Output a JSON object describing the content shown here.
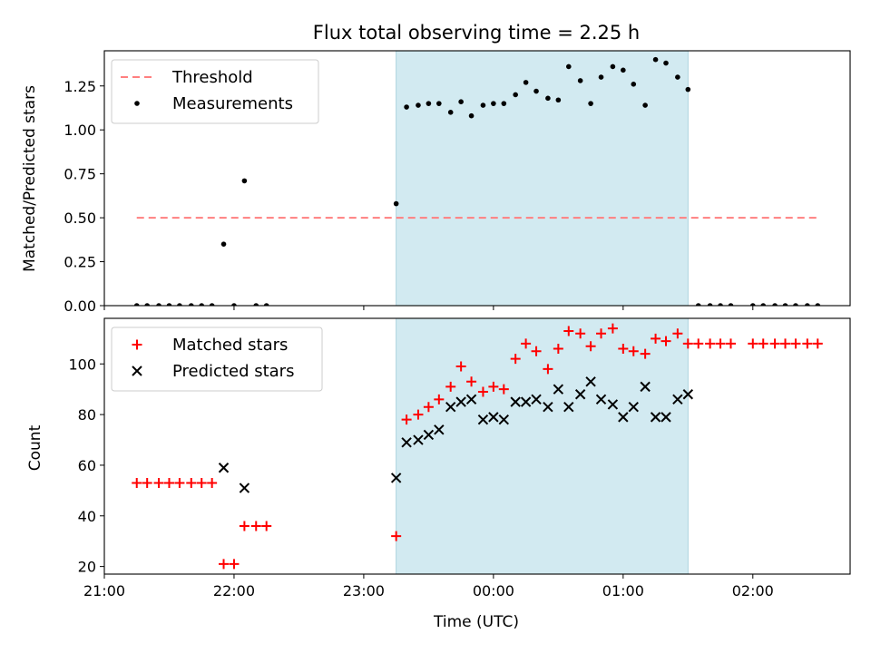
{
  "chart_data": [
    {
      "type": "scatter",
      "title": "Flux total observing time = 2.25 h",
      "xlabel": "",
      "ylabel": "Matched/Predicted stars",
      "ylim": [
        0,
        1.45
      ],
      "yticks": [
        "0.00",
        "0.25",
        "0.50",
        "0.75",
        "1.00",
        "1.25"
      ],
      "ytick_values": [
        0,
        0.25,
        0.5,
        0.75,
        1.0,
        1.25
      ],
      "xlim_hours": [
        21.0,
        2.75
      ],
      "shaded_span_hours": [
        23.25,
        1.5
      ],
      "shaded_color": "#add8e6",
      "legend_position": "upper-left",
      "series": [
        {
          "name": "Threshold",
          "kind": "dashed-line",
          "color": "#ff7f7f",
          "x_hours": [
            21.25,
            2.5
          ],
          "y": [
            0.5,
            0.5
          ]
        },
        {
          "name": "Measurements",
          "kind": "dots",
          "color": "#000000",
          "points": [
            [
              21.25,
              0
            ],
            [
              21.33,
              0
            ],
            [
              21.42,
              0
            ],
            [
              21.5,
              0
            ],
            [
              21.58,
              0
            ],
            [
              21.67,
              0
            ],
            [
              21.75,
              0
            ],
            [
              21.83,
              0
            ],
            [
              21.92,
              0.35
            ],
            [
              22.0,
              0
            ],
            [
              22.08,
              0.71
            ],
            [
              22.17,
              0
            ],
            [
              22.25,
              0
            ],
            [
              23.25,
              0.58
            ],
            [
              23.33,
              1.13
            ],
            [
              23.42,
              1.14
            ],
            [
              23.5,
              1.15
            ],
            [
              23.58,
              1.15
            ],
            [
              23.67,
              1.1
            ],
            [
              23.75,
              1.16
            ],
            [
              23.83,
              1.08
            ],
            [
              23.92,
              1.14
            ],
            [
              0.0,
              1.15
            ],
            [
              0.08,
              1.15
            ],
            [
              0.17,
              1.2
            ],
            [
              0.25,
              1.27
            ],
            [
              0.33,
              1.22
            ],
            [
              0.42,
              1.18
            ],
            [
              0.5,
              1.17
            ],
            [
              0.58,
              1.36
            ],
            [
              0.67,
              1.28
            ],
            [
              0.75,
              1.15
            ],
            [
              0.83,
              1.3
            ],
            [
              0.92,
              1.36
            ],
            [
              1.0,
              1.34
            ],
            [
              1.08,
              1.26
            ],
            [
              1.17,
              1.14
            ],
            [
              1.25,
              1.4
            ],
            [
              1.33,
              1.38
            ],
            [
              1.42,
              1.3
            ],
            [
              1.5,
              1.23
            ],
            [
              1.58,
              0
            ],
            [
              1.67,
              0
            ],
            [
              1.75,
              0
            ],
            [
              1.83,
              0
            ],
            [
              2.0,
              0
            ],
            [
              2.08,
              0
            ],
            [
              2.17,
              0
            ],
            [
              2.25,
              0
            ],
            [
              2.33,
              0
            ],
            [
              2.42,
              0
            ],
            [
              2.5,
              0
            ]
          ]
        }
      ]
    },
    {
      "type": "scatter",
      "title": "",
      "xlabel": "Time (UTC)",
      "ylabel": "Count",
      "ylim": [
        17,
        118
      ],
      "yticks": [
        "20",
        "40",
        "60",
        "80",
        "100"
      ],
      "ytick_values": [
        20,
        40,
        60,
        80,
        100
      ],
      "xticks": [
        "21:00",
        "22:00",
        "23:00",
        "00:00",
        "01:00",
        "02:00"
      ],
      "xtick_hours": [
        21,
        22,
        23,
        0,
        1,
        2
      ],
      "xlim_hours": [
        21.0,
        2.75
      ],
      "shaded_span_hours": [
        23.25,
        1.5
      ],
      "shaded_color": "#add8e6",
      "legend_position": "upper-left",
      "series": [
        {
          "name": "Matched stars",
          "kind": "plus",
          "color": "#ff0000",
          "points": [
            [
              21.25,
              53
            ],
            [
              21.33,
              53
            ],
            [
              21.42,
              53
            ],
            [
              21.5,
              53
            ],
            [
              21.58,
              53
            ],
            [
              21.67,
              53
            ],
            [
              21.75,
              53
            ],
            [
              21.83,
              53
            ],
            [
              21.92,
              21
            ],
            [
              22.0,
              21
            ],
            [
              22.08,
              36
            ],
            [
              22.17,
              36
            ],
            [
              22.25,
              36
            ],
            [
              23.25,
              32
            ],
            [
              23.33,
              78
            ],
            [
              23.42,
              80
            ],
            [
              23.5,
              83
            ],
            [
              23.58,
              86
            ],
            [
              23.67,
              91
            ],
            [
              23.75,
              99
            ],
            [
              23.83,
              93
            ],
            [
              23.92,
              89
            ],
            [
              0.0,
              91
            ],
            [
              0.08,
              90
            ],
            [
              0.17,
              102
            ],
            [
              0.25,
              108
            ],
            [
              0.33,
              105
            ],
            [
              0.42,
              98
            ],
            [
              0.5,
              106
            ],
            [
              0.58,
              113
            ],
            [
              0.67,
              112
            ],
            [
              0.75,
              107
            ],
            [
              0.83,
              112
            ],
            [
              0.92,
              114
            ],
            [
              1.0,
              106
            ],
            [
              1.08,
              105
            ],
            [
              1.17,
              104
            ],
            [
              1.25,
              110
            ],
            [
              1.33,
              109
            ],
            [
              1.42,
              112
            ],
            [
              1.5,
              108
            ],
            [
              1.58,
              108
            ],
            [
              1.67,
              108
            ],
            [
              1.75,
              108
            ],
            [
              1.83,
              108
            ],
            [
              2.0,
              108
            ],
            [
              2.08,
              108
            ],
            [
              2.17,
              108
            ],
            [
              2.25,
              108
            ],
            [
              2.33,
              108
            ],
            [
              2.42,
              108
            ],
            [
              2.5,
              108
            ]
          ]
        },
        {
          "name": "Predicted stars",
          "kind": "cross",
          "color": "#000000",
          "points": [
            [
              21.92,
              59
            ],
            [
              22.08,
              51
            ],
            [
              23.25,
              55
            ],
            [
              23.33,
              69
            ],
            [
              23.42,
              70
            ],
            [
              23.5,
              72
            ],
            [
              23.58,
              74
            ],
            [
              23.67,
              83
            ],
            [
              23.75,
              85
            ],
            [
              23.83,
              86
            ],
            [
              23.92,
              78
            ],
            [
              0.0,
              79
            ],
            [
              0.08,
              78
            ],
            [
              0.17,
              85
            ],
            [
              0.25,
              85
            ],
            [
              0.33,
              86
            ],
            [
              0.42,
              83
            ],
            [
              0.5,
              90
            ],
            [
              0.58,
              83
            ],
            [
              0.67,
              88
            ],
            [
              0.75,
              93
            ],
            [
              0.83,
              86
            ],
            [
              0.92,
              84
            ],
            [
              1.0,
              79
            ],
            [
              1.08,
              83
            ],
            [
              1.17,
              91
            ],
            [
              1.25,
              79
            ],
            [
              1.33,
              79
            ],
            [
              1.42,
              86
            ],
            [
              1.5,
              88
            ]
          ]
        }
      ]
    }
  ]
}
